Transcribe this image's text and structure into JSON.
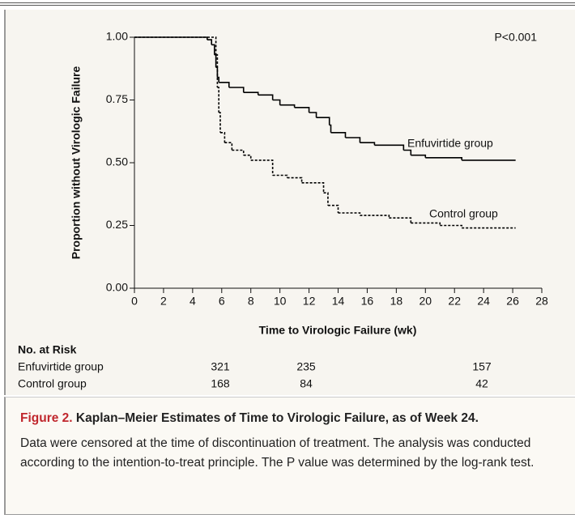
{
  "chart_data": {
    "type": "step",
    "annotation": "P<0.001",
    "xlabel": "Time to Virologic Failure (wk)",
    "ylabel": "Proportion without Virologic Failure",
    "xlim": [
      0,
      28
    ],
    "ylim": [
      0,
      1
    ],
    "xticks": [
      0,
      2,
      4,
      6,
      8,
      10,
      12,
      14,
      16,
      18,
      20,
      22,
      24,
      26,
      28
    ],
    "yticks": [
      {
        "value": 0,
        "label": "0.00"
      },
      {
        "value": 0.25,
        "label": "0.25"
      },
      {
        "value": 0.5,
        "label": "0.50"
      },
      {
        "value": 0.75,
        "label": "0.75"
      },
      {
        "value": 1,
        "label": "1.00"
      }
    ],
    "series": [
      {
        "name": "Enfuvirtide group",
        "color": "#000000",
        "style": "solid",
        "x": [
          0,
          5.0,
          5.3,
          5.5,
          5.6,
          5.7,
          5.8,
          6.5,
          7.5,
          8.5,
          9.5,
          10,
          11,
          12,
          12.5,
          13.4,
          13.5,
          14.5,
          15.5,
          16.5,
          18.5,
          19,
          20,
          22.5,
          26.2
        ],
        "values": [
          1.0,
          0.99,
          0.97,
          0.93,
          0.88,
          0.84,
          0.82,
          0.8,
          0.78,
          0.77,
          0.75,
          0.73,
          0.72,
          0.7,
          0.68,
          0.65,
          0.62,
          0.6,
          0.58,
          0.57,
          0.55,
          0.53,
          0.52,
          0.51,
          0.51
        ]
      },
      {
        "name": "Control group",
        "color": "#000000",
        "style": "dashed",
        "x": [
          0,
          5.6,
          5.7,
          5.8,
          5.9,
          6.2,
          6.7,
          7.5,
          8,
          9.5,
          10.5,
          11.5,
          13,
          13.3,
          14,
          15.5,
          17.5,
          19,
          21,
          22.5,
          26.2
        ],
        "values": [
          1.0,
          0.93,
          0.8,
          0.7,
          0.62,
          0.58,
          0.55,
          0.53,
          0.51,
          0.45,
          0.44,
          0.42,
          0.38,
          0.33,
          0.3,
          0.29,
          0.28,
          0.26,
          0.25,
          0.24,
          0.24
        ]
      }
    ]
  },
  "risk_table": {
    "title": "No. at Risk",
    "rows": [
      {
        "label": "Enfuvirtide group",
        "values": [
          321,
          235,
          157
        ]
      },
      {
        "label": "Control group",
        "values": [
          168,
          84,
          42
        ]
      }
    ]
  },
  "caption": {
    "label": "Figure 2.",
    "title": "Kaplan–Meier Estimates of Time to Virologic Failure, as of Week 24.",
    "text": "Data were censored at the time of discontinuation of treatment. The analysis was conducted according to the intention-to-treat principle. The P value was determined by the log-rank test."
  }
}
